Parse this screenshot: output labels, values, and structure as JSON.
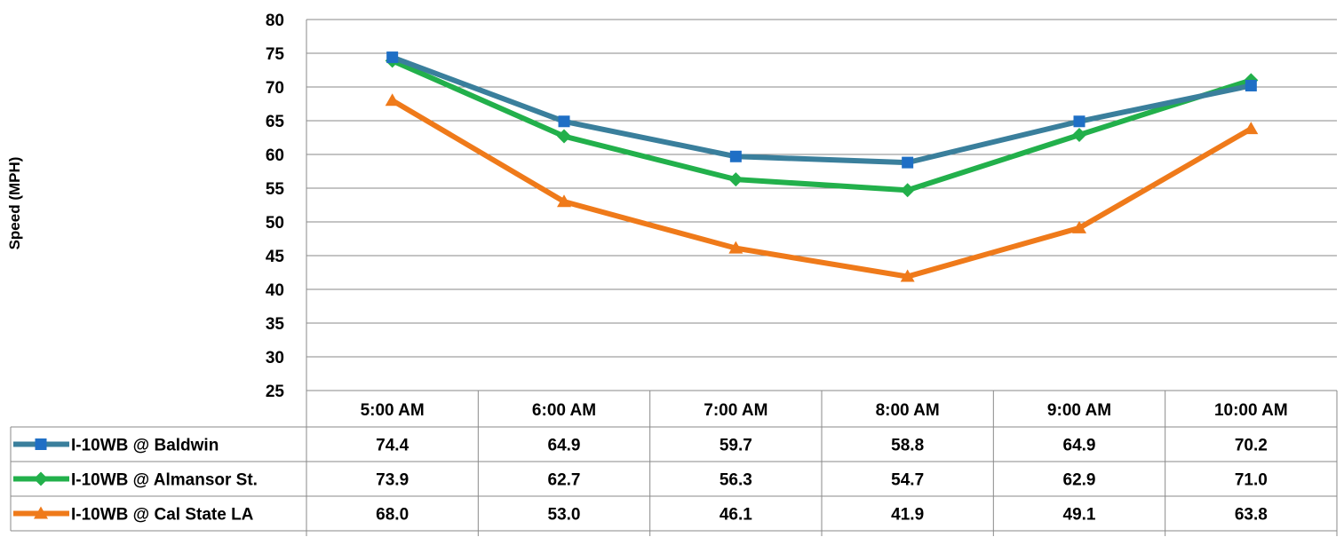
{
  "chart_data": {
    "type": "line",
    "ylabel": "Speed  (MPH)",
    "xlabel": "",
    "ylim": [
      25,
      80
    ],
    "y_ticks": [
      80,
      75,
      70,
      65,
      60,
      55,
      50,
      45,
      40,
      35,
      30,
      25
    ],
    "grid": true,
    "legend_placement": "data-table-left",
    "categories": [
      "5:00 AM",
      "6:00 AM",
      "7:00 AM",
      "8:00 AM",
      "9:00 AM",
      "10:00 AM"
    ],
    "series": [
      {
        "name": "I-10WB @ Baldwin",
        "marker": "square",
        "color": "#3a7f9c",
        "marker_color": "#1f6fc5",
        "values": [
          74.4,
          64.9,
          59.7,
          58.8,
          64.9,
          70.2
        ],
        "labels": [
          "74.4",
          "64.9",
          "59.7",
          "58.8",
          "64.9",
          "70.2"
        ]
      },
      {
        "name": "I-10WB @ Almansor St.",
        "marker": "diamond",
        "color": "#22b04b",
        "marker_color": "#22b04b",
        "values": [
          73.9,
          62.7,
          56.3,
          54.7,
          62.9,
          71.0
        ],
        "labels": [
          "73.9",
          "62.7",
          "56.3",
          "54.7",
          "62.9",
          "71.0"
        ]
      },
      {
        "name": "I-10WB @ Cal State LA",
        "marker": "triangle",
        "color": "#ef7a1a",
        "marker_color": "#ef7a1a",
        "values": [
          68.0,
          53.0,
          46.1,
          41.9,
          49.1,
          63.8
        ],
        "labels": [
          "68.0",
          "53.0",
          "46.1",
          "41.9",
          "49.1",
          "63.8"
        ]
      }
    ]
  }
}
